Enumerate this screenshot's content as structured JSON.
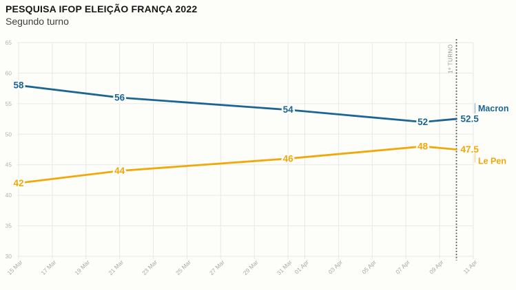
{
  "header": {
    "title": "PESQUISA IFOP ELEIÇÃO FRANÇA 2022",
    "subtitle": "Segundo turno"
  },
  "colors": {
    "background": "#fdfdfa",
    "grid": "#e8e8e6",
    "y_tick_label": "#b2b2b0",
    "x_tick_label": "#a8a8a6",
    "annotation_line": "#4f4f4f",
    "annotation_label": "#8f8f8f",
    "macron": "#1b6594",
    "lepen": "#f0a80a"
  },
  "chart_data": {
    "type": "line",
    "title": "PESQUISA IFOP ELEIÇÃO FRANÇA 2022",
    "subtitle": "Segundo turno",
    "xlabel": "",
    "ylabel": "",
    "ylim": [
      30,
      65
    ],
    "y_ticks": [
      30,
      35,
      40,
      45,
      50,
      55,
      60,
      65
    ],
    "x_domain_days": [
      0,
      27
    ],
    "x_ticks": [
      {
        "day": 0,
        "label": "15 Mar"
      },
      {
        "day": 2,
        "label": "17 Mar"
      },
      {
        "day": 4,
        "label": "19 Mar"
      },
      {
        "day": 6,
        "label": "21 Mar"
      },
      {
        "day": 8,
        "label": "23 Mar"
      },
      {
        "day": 10,
        "label": "25 Mar"
      },
      {
        "day": 12,
        "label": "27 Mar"
      },
      {
        "day": 14,
        "label": "29 Mar"
      },
      {
        "day": 16,
        "label": "31 Mar"
      },
      {
        "day": 17,
        "label": "01 Apr"
      },
      {
        "day": 19,
        "label": "03 Apr"
      },
      {
        "day": 21,
        "label": "05 Apr"
      },
      {
        "day": 23,
        "label": "07 Apr"
      },
      {
        "day": 25,
        "label": "09 Apr"
      },
      {
        "day": 27,
        "label": "11 Apr"
      }
    ],
    "grid": true,
    "legend_position": "right-end-labels",
    "annotation_line": {
      "day": 26,
      "label": "1º TURNO"
    },
    "series": [
      {
        "name": "Macron",
        "color": "#1b6594",
        "name_side": "above",
        "points": [
          {
            "day": 0,
            "value": 58
          },
          {
            "day": 6,
            "value": 56
          },
          {
            "day": 16,
            "value": 54
          },
          {
            "day": 24,
            "value": 52
          },
          {
            "day": 26,
            "value": 52.5
          }
        ]
      },
      {
        "name": "Le Pen",
        "color": "#f0a80a",
        "name_side": "below",
        "points": [
          {
            "day": 0,
            "value": 42
          },
          {
            "day": 6,
            "value": 44
          },
          {
            "day": 16,
            "value": 46
          },
          {
            "day": 24,
            "value": 48
          },
          {
            "day": 26,
            "value": 47.5
          }
        ]
      }
    ]
  }
}
